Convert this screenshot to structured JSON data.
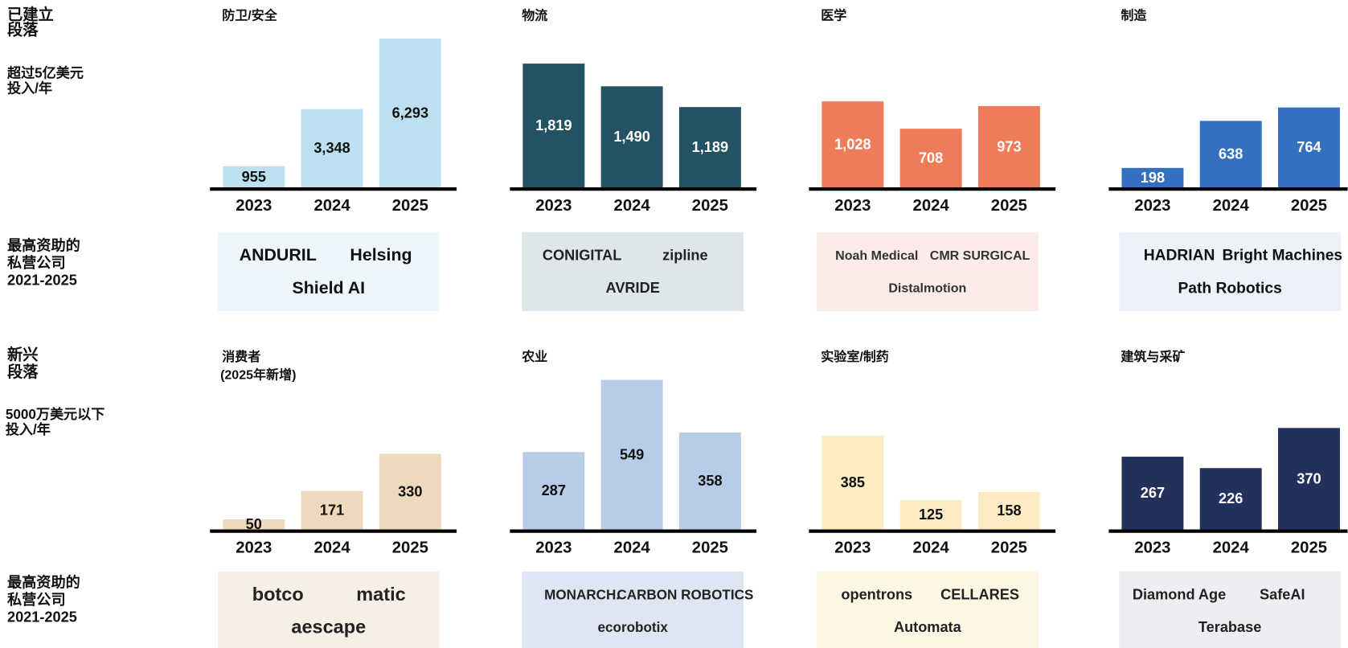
{
  "left_labels": {
    "established": [
      "已建立",
      "段落"
    ],
    "established_sub": [
      "超过5亿美元",
      "投入/年"
    ],
    "top_funded_1": [
      "最高资助的",
      "私营公司",
      "2021-2025"
    ],
    "emerging": [
      "新兴",
      "段落"
    ],
    "emerging_sub": [
      "5000万美元以下",
      "投入/年"
    ],
    "top_funded_2": [
      "最高资助的",
      "私营公司",
      "2021-2025"
    ]
  },
  "chart_data": [
    {
      "type": "bar",
      "title": "防卫/安全",
      "categories": [
        "2023",
        "2024",
        "2025"
      ],
      "values": [
        955,
        3348,
        6293
      ],
      "value_labels": [
        "955",
        "3,348",
        "6,293"
      ],
      "color": "#bde0f0",
      "label_color": "#111111",
      "logo_bg": "#eef5fb",
      "companies": [
        "ANDURIL",
        "Helsing",
        "Shield AI"
      ]
    },
    {
      "type": "bar",
      "title": "物流",
      "categories": [
        "2023",
        "2024",
        "2025"
      ],
      "values": [
        1819,
        1490,
        1189
      ],
      "value_labels": [
        "1,819",
        "1,490",
        "1,189"
      ],
      "color": "#235263",
      "label_color": "#ffffff",
      "logo_bg": "#dfe6e9",
      "companies": [
        "CONIGITAL",
        "zipline",
        "AVRIDE"
      ]
    },
    {
      "type": "bar",
      "title": "医学",
      "categories": [
        "2023",
        "2024",
        "2025"
      ],
      "values": [
        1028,
        708,
        973
      ],
      "value_labels": [
        "1,028",
        "708",
        "973"
      ],
      "color": "#ef7c58",
      "label_color": "#ffffff",
      "logo_bg": "#fbecea",
      "companies": [
        "Noah Medical",
        "CMR SURGICAL",
        "Distalmotion"
      ]
    },
    {
      "type": "bar",
      "title": "制造",
      "categories": [
        "2023",
        "2024",
        "2025"
      ],
      "values": [
        198,
        638,
        764
      ],
      "color": "#3470c0",
      "label_color": "#ffffff",
      "logo_bg": "#eef2f8",
      "companies": [
        "HADRIAN",
        "Bright Machines",
        "Path Robotics"
      ]
    },
    {
      "type": "bar",
      "title": "消费者",
      "subtitle": "(2025年新增)",
      "categories": [
        "2023",
        "2024",
        "2025"
      ],
      "values": [
        50,
        171,
        330
      ],
      "color": "#eed9bd",
      "label_color": "#111111",
      "logo_bg": "#f6efe6",
      "companies": [
        "botco",
        "matic",
        "aescape"
      ]
    },
    {
      "type": "bar",
      "title": "农业",
      "categories": [
        "2023",
        "2024",
        "2025"
      ],
      "values": [
        287,
        549,
        358
      ],
      "color": "#b7cce6",
      "label_color": "#111111",
      "logo_bg": "#dde6f2",
      "companies": [
        "MONARCH.",
        "CARBON ROBOTICS",
        "ecorobotix"
      ]
    },
    {
      "type": "bar",
      "title": "实验室/制药",
      "categories": [
        "2023",
        "2024",
        "2025"
      ],
      "values": [
        385,
        125,
        158
      ],
      "color": "#fdecc3",
      "label_color": "#111111",
      "logo_bg": "#fdf6e3",
      "companies": [
        "opentrons",
        "CELLARES",
        "Automata"
      ]
    },
    {
      "type": "bar",
      "title": "建筑与采矿",
      "categories": [
        "2023",
        "2024",
        "2025"
      ],
      "values": [
        267,
        226,
        370
      ],
      "color": "#22305b",
      "label_color": "#ffffff",
      "logo_bg": "#eceef1",
      "companies": [
        "Diamond Age",
        "SafeAI",
        "Terabase"
      ]
    }
  ]
}
